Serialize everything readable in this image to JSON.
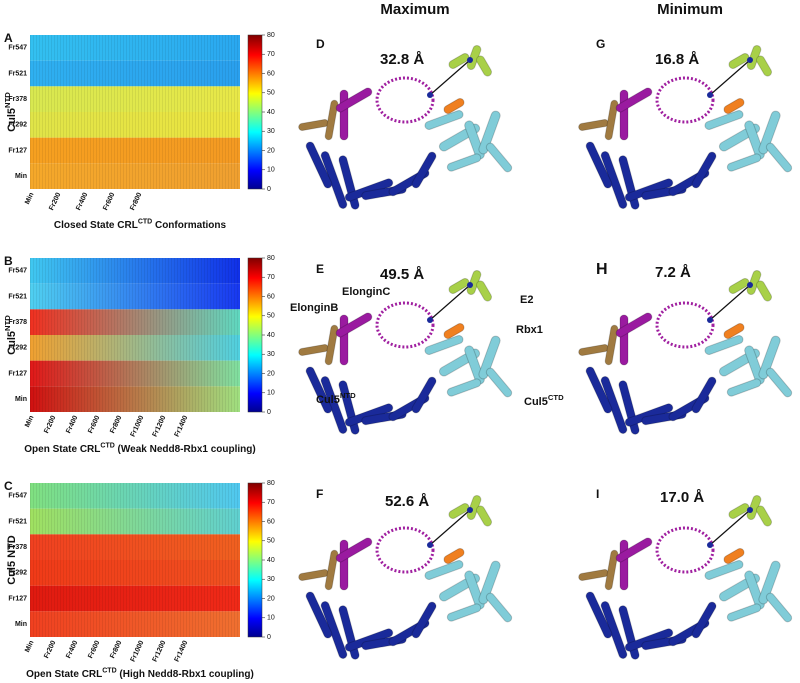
{
  "column_headers": [
    "Maximum",
    "Minimum"
  ],
  "heatmaps": [
    {
      "label": "A",
      "y_title": {
        "main": "Cul5",
        "sup": "NTD"
      },
      "rows": [
        "Fr547",
        "Fr521",
        "Fr378",
        "Fr292",
        "Fr127",
        "Min"
      ],
      "x_ticks": [
        "Min",
        "Fr200",
        "Fr400",
        "Fr600",
        "Fr800"
      ],
      "colorbar_ticks": [
        0,
        10,
        20,
        30,
        40,
        50,
        60,
        70,
        80
      ],
      "caption": {
        "pre": "Closed State CRL",
        "sup": "CTD",
        "post": " Conformations"
      }
    },
    {
      "label": "B",
      "y_title": {
        "main": "Cul5",
        "sup": "NTD"
      },
      "rows": [
        "Fr547",
        "Fr521",
        "Fr378",
        "Fr292",
        "Fr127",
        "Min"
      ],
      "x_ticks": [
        "Min",
        "Fr200",
        "Fr400",
        "Fr600",
        "Fr800",
        "Fr1000",
        "Fr1200",
        "Fr1400"
      ],
      "colorbar_ticks": [
        0,
        10,
        20,
        30,
        40,
        50,
        60,
        70,
        80
      ],
      "caption": {
        "pre": "Open State CRL",
        "sup": "CTD",
        "post": " (Weak Nedd8-Rbx1 coupling)"
      }
    },
    {
      "label": "C",
      "y_title": {
        "main": "Cul5 NTD",
        "sup": ""
      },
      "rows": [
        "Fr547",
        "Fr521",
        "Fr378",
        "Fr292",
        "Fr127",
        "Min"
      ],
      "x_ticks": [
        "Min",
        "Fr200",
        "Fr400",
        "Fr600",
        "Fr800",
        "Fr1000",
        "Fr1200",
        "Fr1400"
      ],
      "colorbar_ticks": [
        0,
        10,
        20,
        30,
        40,
        50,
        60,
        70,
        80
      ],
      "caption": {
        "pre": "Open State CRL",
        "sup": "CTD",
        "post": " (High Nedd8-Rbx1 coupling)"
      }
    }
  ],
  "structures": [
    {
      "label": "D",
      "distance": "32.8 Å"
    },
    {
      "label": "G",
      "distance": "16.8 Å"
    },
    {
      "label": "E",
      "distance": "49.5 Å"
    },
    {
      "label": "H",
      "distance": "7.2 Å"
    },
    {
      "label": "F",
      "distance": "52.6 Å"
    },
    {
      "label": "I",
      "distance": "17.0 Å"
    }
  ],
  "annotations": {
    "elonginC": "ElonginC",
    "elonginB": "ElonginB",
    "e2": "E2",
    "rbx1": "Rbx1",
    "cul5ntd": {
      "main": "Cul5",
      "sup": "NTD"
    },
    "cul5ctd": {
      "main": "Cul5",
      "sup": "CTD"
    }
  }
}
